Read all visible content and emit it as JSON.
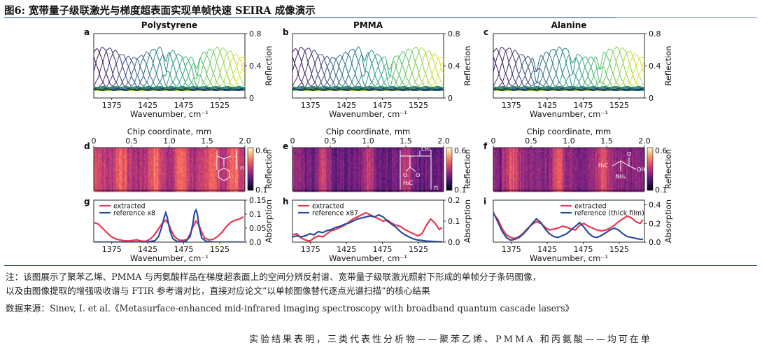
{
  "figure": {
    "title": "图6: 宽带量子级联激光与梯度超表面实现单帧快速 SEIRA 成像演示",
    "note_line1": "注：该图展示了聚苯乙烯、PMMA 与丙氨酸样品在梯度超表面上的空间分辨反射谱、宽带量子级联激光照射下形成的单帧分子条码图像，",
    "note_line2": "以及由图像提取的增强吸收谱与 FTIR 参考谱对比，直接对应论文“以单帧图像替代逐点光谱扫描”的核心结果",
    "source": "数据来源：Sinev, I. et al.《Metasurface-enhanced mid-infrared imaging spectroscopy with broadband quantum cascade lasers》",
    "trailing_text": "实验结果表明，三类代表性分析物——聚苯乙烯、PMMA 和丙氨酸——均可在单"
  },
  "colors": {
    "accent_blue": "#1f3f8f",
    "extracted": "#e8364e",
    "reference": "#2a4a9c"
  },
  "chart_data": [
    {
      "id": "a",
      "type": "line",
      "title": "Polystyrene",
      "xlabel": "Wavenumber, cm⁻¹",
      "ylabel": "Reflection",
      "xlim": [
        1350,
        1560
      ],
      "xticks": [
        1375,
        1425,
        1475,
        1525
      ],
      "ylim": [
        0,
        0.8
      ],
      "yticks": [
        "0",
        "0.4",
        "0.8"
      ],
      "series_count": 26,
      "resonance_range": [
        1345,
        1565
      ],
      "peak_reflection": 0.63,
      "absorption_dips": [
        1450,
        1493
      ]
    },
    {
      "id": "b",
      "type": "line",
      "title": "PMMA",
      "xlabel": "Wavenumber, cm⁻¹",
      "ylabel": "Reflection",
      "xlim": [
        1350,
        1560
      ],
      "xticks": [
        1375,
        1425,
        1475,
        1525
      ],
      "ylim": [
        0,
        0.8
      ],
      "yticks": [
        "0",
        "0.4",
        "0.8"
      ],
      "series_count": 26,
      "resonance_range": [
        1345,
        1565
      ],
      "peak_reflection": 0.63,
      "absorption_dips": [
        1450,
        1485
      ]
    },
    {
      "id": "c",
      "type": "line",
      "title": "Alanine",
      "xlabel": "Wavenumber, cm⁻¹",
      "ylabel": "Reflection",
      "xlim": [
        1350,
        1560
      ],
      "xticks": [
        1375,
        1425,
        1475,
        1525
      ],
      "ylim": [
        0,
        0.8
      ],
      "yticks": [
        "0",
        "0.4",
        "0.8"
      ],
      "series_count": 26,
      "resonance_range": [
        1345,
        1565
      ],
      "peak_reflection": 0.63,
      "absorption_dips": [
        1410,
        1460,
        1498
      ]
    },
    {
      "id": "d",
      "type": "heatmap",
      "xlabel": "Chip coordinate, mm",
      "xlim": [
        0,
        2.0
      ],
      "xticks": [
        "0",
        "0.5",
        "1.0",
        "1.5",
        "2.0"
      ],
      "colorbar_label": "Reflection",
      "colorbar_range": [
        "0.1",
        "0.6"
      ],
      "molecule": "polystyrene",
      "molecule_label": "n",
      "bright_bands_mm": [
        0.35,
        0.8,
        1.15,
        1.55,
        1.85
      ],
      "overall_level": 0.48
    },
    {
      "id": "e",
      "type": "heatmap",
      "xlabel": "Chip coordinate, mm",
      "xlim": [
        0,
        2.0
      ],
      "xticks": [
        "0",
        "0.5",
        "1.0",
        "1.5",
        "2.0"
      ],
      "colorbar_label": "Reflection",
      "colorbar_range": [
        "0.1",
        "0.6"
      ],
      "molecule": "PMMA",
      "molecule_labels": [
        "CH₃",
        "O",
        "H₃C",
        "n"
      ],
      "bright_bands_mm": [
        0.4,
        1.0,
        1.5
      ],
      "overall_level": 0.32
    },
    {
      "id": "f",
      "type": "heatmap",
      "xlabel": "Chip coordinate, mm",
      "xlim": [
        0,
        2.0
      ],
      "xticks": [
        "0",
        "0.5",
        "1.0",
        "1.5",
        "2.0"
      ],
      "colorbar_label": "Reflection",
      "colorbar_range": [
        "0.1",
        "0.6"
      ],
      "molecule": "alanine",
      "molecule_labels": [
        "H₃C",
        "O",
        "OH",
        "NH₂"
      ],
      "bright_bands_mm": [
        0.25,
        0.85,
        1.45
      ],
      "overall_level": 0.4
    },
    {
      "id": "g",
      "type": "line",
      "xlabel": "Wavenumber, cm⁻¹",
      "ylabel": "Absorption",
      "xlim": [
        1350,
        1560
      ],
      "xticks": [
        1375,
        1425,
        1475,
        1525
      ],
      "ylim": [
        0,
        0.15
      ],
      "yticks": [
        "0.0",
        "0.05",
        "0.1",
        "0.15"
      ],
      "legend": [
        "extracted",
        "reference x8"
      ],
      "series": [
        {
          "name": "extracted",
          "x": [
            1350,
            1356,
            1362,
            1368,
            1374,
            1380,
            1386,
            1392,
            1398,
            1404,
            1410,
            1416,
            1422,
            1428,
            1434,
            1438,
            1442,
            1446,
            1450,
            1454,
            1458,
            1462,
            1468,
            1474,
            1480,
            1484,
            1488,
            1492,
            1496,
            1500,
            1504,
            1510,
            1516,
            1522,
            1528,
            1534,
            1540,
            1546,
            1552,
            1558
          ],
          "values": [
            0.07,
            0.065,
            0.05,
            0.035,
            0.02,
            0.012,
            0.008,
            0.005,
            0.004,
            0.006,
            0.008,
            0.004,
            0.003,
            0.01,
            0.025,
            0.04,
            0.055,
            0.07,
            0.078,
            0.065,
            0.04,
            0.02,
            0.008,
            0.006,
            0.01,
            0.03,
            0.055,
            0.075,
            0.062,
            0.035,
            0.015,
            0.008,
            0.01,
            0.02,
            0.035,
            0.055,
            0.07,
            0.078,
            0.082,
            0.09
          ]
        },
        {
          "name": "reference x8",
          "x": [
            1350,
            1370,
            1400,
            1425,
            1435,
            1440,
            1444,
            1448,
            1450,
            1452,
            1456,
            1460,
            1466,
            1472,
            1478,
            1484,
            1488,
            1490,
            1492,
            1494,
            1496,
            1500,
            1506,
            1520,
            1540,
            1558
          ],
          "values": [
            0,
            0,
            0,
            0.001,
            0.005,
            0.02,
            0.05,
            0.09,
            0.105,
            0.09,
            0.04,
            0.012,
            0.002,
            0.001,
            0.003,
            0.02,
            0.07,
            0.105,
            0.115,
            0.1,
            0.06,
            0.015,
            0.003,
            0,
            0,
            0
          ]
        }
      ]
    },
    {
      "id": "h",
      "type": "line",
      "xlabel": "Wavenumber, cm⁻¹",
      "ylabel": "Absorption",
      "xlim": [
        1350,
        1560
      ],
      "xticks": [
        1375,
        1425,
        1475,
        1525
      ],
      "ylim": [
        0,
        0.2
      ],
      "yticks": [
        "0.0",
        "0.1",
        "0.2"
      ],
      "legend": [
        "extracted",
        "reference x87"
      ],
      "series": [
        {
          "name": "extracted",
          "x": [
            1350,
            1356,
            1362,
            1368,
            1374,
            1380,
            1386,
            1392,
            1398,
            1404,
            1410,
            1416,
            1422,
            1428,
            1434,
            1440,
            1446,
            1452,
            1458,
            1464,
            1470,
            1476,
            1482,
            1488,
            1494,
            1500,
            1506,
            1512,
            1518,
            1524,
            1530,
            1536,
            1542,
            1548,
            1554,
            1558
          ],
          "values": [
            0.035,
            0.04,
            0.02,
            0.01,
            0.005,
            0.02,
            0.03,
            0.025,
            0.04,
            0.055,
            0.06,
            0.07,
            0.08,
            0.095,
            0.11,
            0.12,
            0.13,
            0.14,
            0.13,
            0.12,
            0.11,
            0.1,
            0.105,
            0.09,
            0.08,
            0.075,
            0.06,
            0.05,
            0.04,
            0.03,
            0.04,
            0.08,
            0.11,
            0.09,
            0.06,
            0.07
          ]
        },
        {
          "name": "reference x87",
          "x": [
            1350,
            1356,
            1362,
            1368,
            1374,
            1380,
            1386,
            1392,
            1398,
            1404,
            1410,
            1416,
            1422,
            1428,
            1434,
            1440,
            1446,
            1452,
            1458,
            1464,
            1470,
            1476,
            1482,
            1488,
            1494,
            1500,
            1506,
            1512,
            1518,
            1524,
            1530,
            1536,
            1542,
            1548,
            1554,
            1558
          ],
          "values": [
            0.025,
            0.03,
            0.025,
            0.03,
            0.04,
            0.035,
            0.05,
            0.045,
            0.055,
            0.06,
            0.07,
            0.075,
            0.085,
            0.09,
            0.1,
            0.11,
            0.115,
            0.12,
            0.125,
            0.12,
            0.13,
            0.12,
            0.1,
            0.085,
            0.07,
            0.05,
            0.035,
            0.025,
            0.015,
            0.01,
            0.008,
            0.005,
            0.004,
            0.003,
            0.002,
            0.002
          ]
        }
      ]
    },
    {
      "id": "i",
      "type": "line",
      "xlabel": "Wavenumber, cm⁻¹",
      "ylabel": "Absorption",
      "xlim": [
        1350,
        1560
      ],
      "xticks": [
        1375,
        1425,
        1475,
        1525
      ],
      "ylim": [
        0,
        0.45
      ],
      "yticks": [
        "0.0",
        "0.2",
        "0.4"
      ],
      "legend": [
        "extracted",
        "reference (thick film)"
      ],
      "series": [
        {
          "name": "extracted",
          "x": [
            1350,
            1356,
            1362,
            1368,
            1374,
            1380,
            1386,
            1392,
            1398,
            1404,
            1410,
            1416,
            1422,
            1428,
            1434,
            1440,
            1446,
            1452,
            1458,
            1464,
            1470,
            1476,
            1482,
            1488,
            1494,
            1500,
            1506,
            1512,
            1518,
            1524,
            1530,
            1536,
            1542,
            1548,
            1554,
            1558
          ],
          "values": [
            0.3,
            0.25,
            0.15,
            0.08,
            0.05,
            0.04,
            0.06,
            0.1,
            0.15,
            0.19,
            0.22,
            0.2,
            0.16,
            0.13,
            0.14,
            0.15,
            0.17,
            0.16,
            0.14,
            0.13,
            0.18,
            0.2,
            0.17,
            0.15,
            0.13,
            0.12,
            0.13,
            0.15,
            0.18,
            0.22,
            0.25,
            0.28,
            0.26,
            0.22,
            0.2,
            0.24
          ]
        },
        {
          "name": "reference (thick film)",
          "x": [
            1350,
            1356,
            1362,
            1368,
            1374,
            1380,
            1386,
            1392,
            1398,
            1404,
            1410,
            1416,
            1422,
            1428,
            1434,
            1440,
            1446,
            1452,
            1458,
            1464,
            1470,
            1476,
            1482,
            1488,
            1494,
            1500,
            1506,
            1512,
            1518,
            1524,
            1530,
            1536,
            1542,
            1548,
            1554,
            1558
          ],
          "values": [
            0.32,
            0.22,
            0.12,
            0.05,
            0.02,
            0.03,
            0.05,
            0.09,
            0.14,
            0.2,
            0.25,
            0.21,
            0.14,
            0.09,
            0.06,
            0.05,
            0.07,
            0.09,
            0.13,
            0.17,
            0.21,
            0.16,
            0.1,
            0.06,
            0.05,
            0.07,
            0.1,
            0.13,
            0.15,
            0.13,
            0.09,
            0.06,
            0.05,
            0.04,
            0.03,
            0.03
          ]
        }
      ]
    }
  ]
}
